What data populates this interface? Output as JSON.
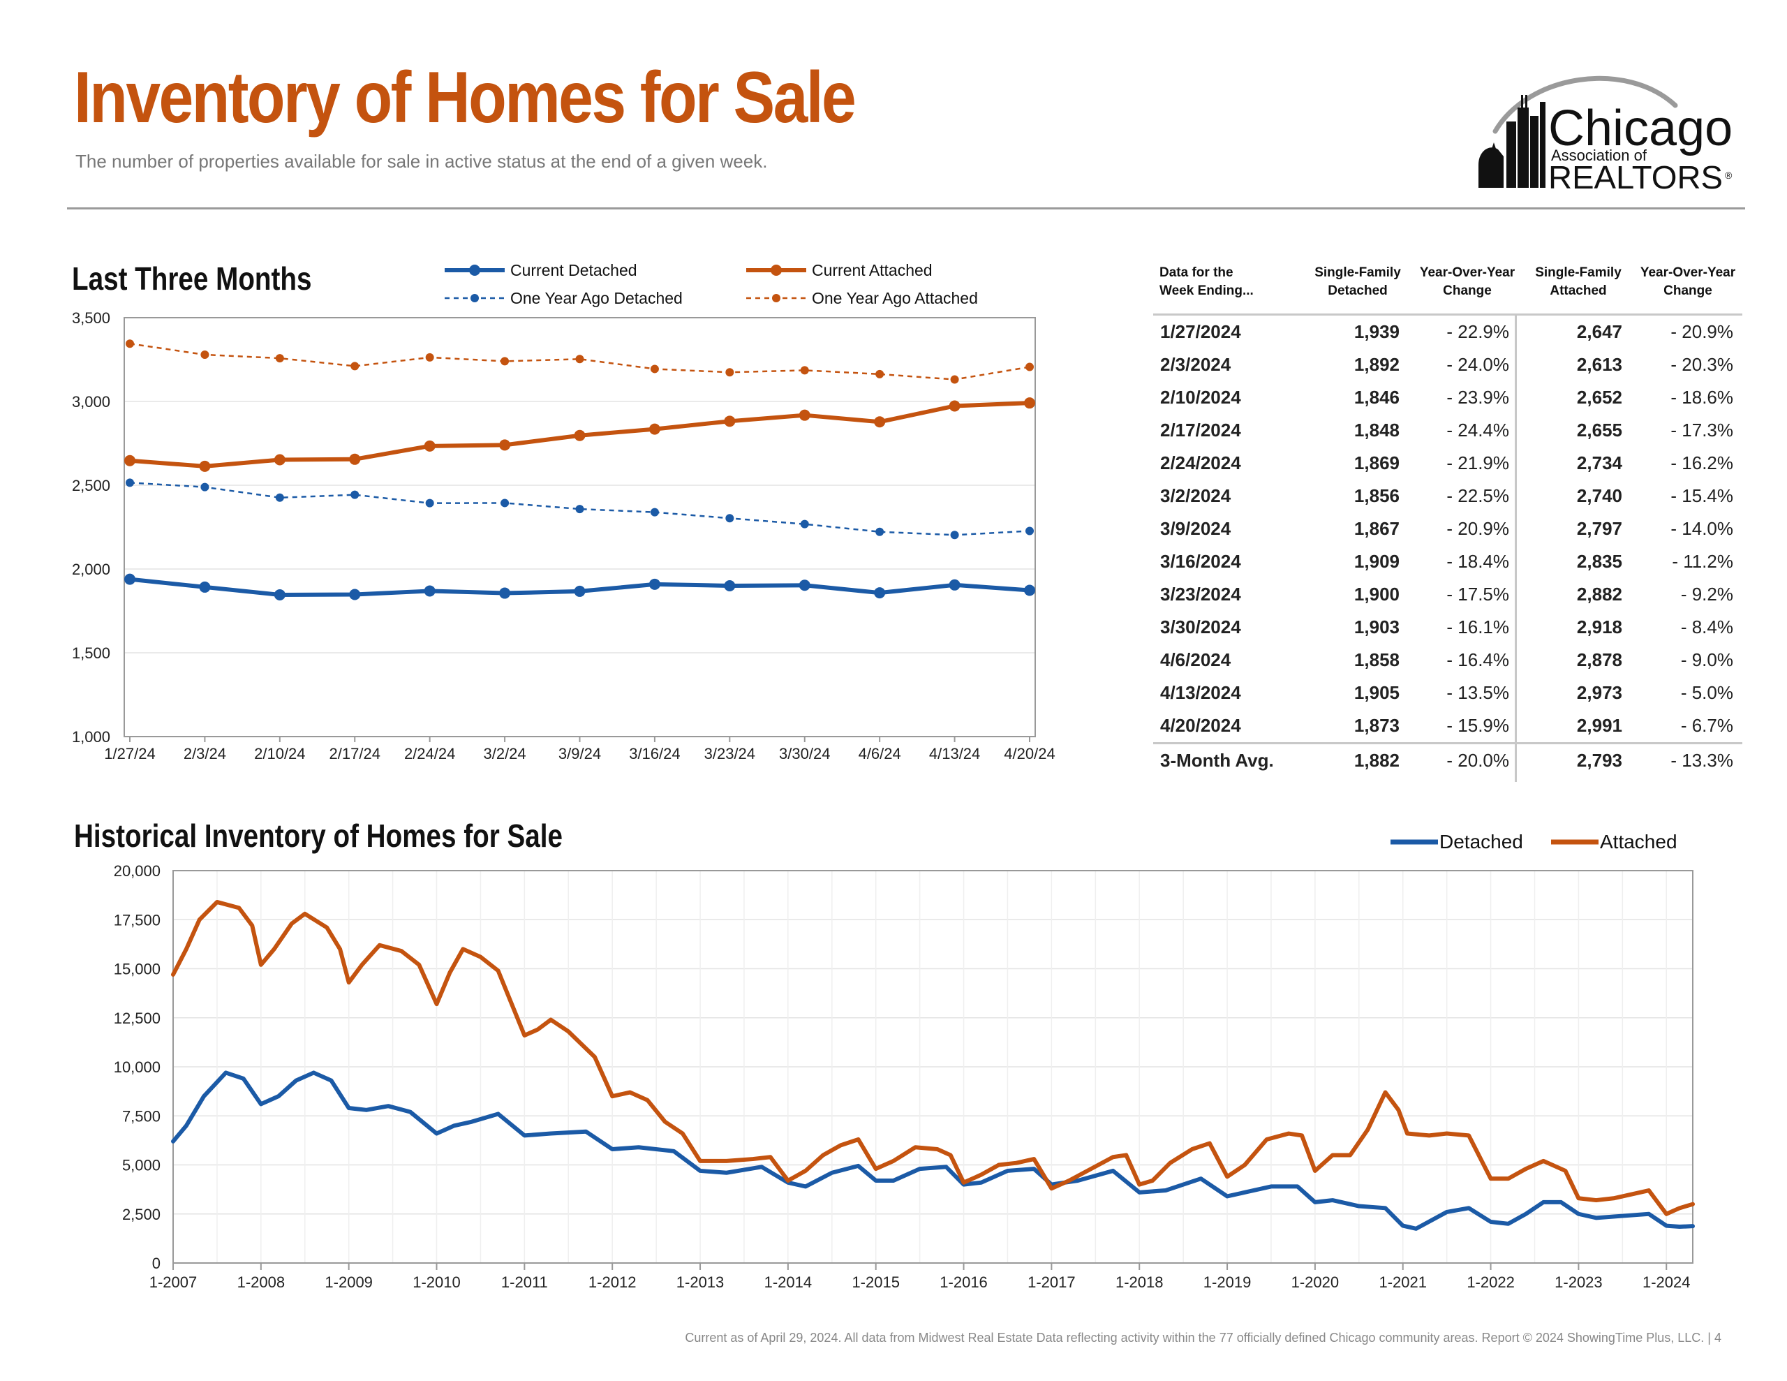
{
  "header": {
    "title": "Inventory of Homes for Sale",
    "subtitle": "The number of properties available for sale in active status at the end of a given week."
  },
  "logo": {
    "line1": "Chicago",
    "line2": "Association of",
    "line3": "REALTORS",
    "mark": "®"
  },
  "colors": {
    "title": "#c4530f",
    "detached": "#1b5aa6",
    "attached": "#c4530f",
    "grid": "#e3e3e3"
  },
  "section1_title": "Last Three Months",
  "section2_title": "Historical Inventory of Homes for Sale",
  "chart_data": [
    {
      "type": "line",
      "categories": [
        "1/27/24",
        "2/3/24",
        "2/10/24",
        "2/17/24",
        "2/24/24",
        "3/2/24",
        "3/9/24",
        "3/16/24",
        "3/23/24",
        "3/30/24",
        "4/6/24",
        "4/13/24",
        "4/20/24"
      ],
      "yticks": [
        "1,000",
        "1,500",
        "2,000",
        "2,500",
        "3,000",
        "3,500"
      ],
      "ylim": [
        1000,
        3500
      ],
      "grid": true,
      "legend_position": "top",
      "series": [
        {
          "name": "Current Detached",
          "style": "solid",
          "color": "#1b5aa6",
          "values": [
            1939,
            1892,
            1846,
            1848,
            1869,
            1856,
            1867,
            1909,
            1900,
            1903,
            1858,
            1905,
            1873
          ]
        },
        {
          "name": "Current Attached",
          "style": "solid",
          "color": "#c4530f",
          "values": [
            2647,
            2613,
            2652,
            2655,
            2734,
            2740,
            2797,
            2835,
            2882,
            2918,
            2878,
            2973,
            2991
          ]
        },
        {
          "name": "One Year Ago Detached",
          "style": "dashed",
          "color": "#1b5aa6",
          "values": [
            2515,
            2489,
            2426,
            2443,
            2393,
            2394,
            2358,
            2339,
            2303,
            2268,
            2222,
            2203,
            2227
          ]
        },
        {
          "name": "One Year Ago Attached",
          "style": "dashed",
          "color": "#c4530f",
          "values": [
            3345,
            3279,
            3258,
            3211,
            3263,
            3240,
            3253,
            3194,
            3174,
            3186,
            3163,
            3131,
            3206
          ]
        }
      ]
    },
    {
      "type": "line",
      "xticks": [
        "1-2007",
        "1-2008",
        "1-2009",
        "1-2010",
        "1-2011",
        "1-2012",
        "1-2013",
        "1-2014",
        "1-2015",
        "1-2016",
        "1-2017",
        "1-2018",
        "1-2019",
        "1-2020",
        "1-2021",
        "1-2022",
        "1-2023",
        "1-2024"
      ],
      "xlim": [
        2007.0,
        2024.3
      ],
      "yticks": [
        "0",
        "2,500",
        "5,000",
        "7,500",
        "10,000",
        "12,500",
        "15,000",
        "17,500",
        "20,000"
      ],
      "ylim": [
        0,
        20000
      ],
      "grid": true,
      "legend_position": "top-right",
      "series": [
        {
          "name": "Detached",
          "color": "#1b5aa6",
          "points": [
            [
              2007.0,
              6200
            ],
            [
              2007.15,
              7000
            ],
            [
              2007.35,
              8500
            ],
            [
              2007.6,
              9700
            ],
            [
              2007.8,
              9400
            ],
            [
              2008.0,
              8100
            ],
            [
              2008.2,
              8500
            ],
            [
              2008.4,
              9300
            ],
            [
              2008.6,
              9700
            ],
            [
              2008.8,
              9300
            ],
            [
              2009.0,
              7900
            ],
            [
              2009.2,
              7800
            ],
            [
              2009.45,
              8000
            ],
            [
              2009.7,
              7700
            ],
            [
              2010.0,
              6600
            ],
            [
              2010.2,
              7000
            ],
            [
              2010.4,
              7200
            ],
            [
              2010.7,
              7600
            ],
            [
              2011.0,
              6500
            ],
            [
              2011.3,
              6600
            ],
            [
              2011.7,
              6700
            ],
            [
              2012.0,
              5800
            ],
            [
              2012.3,
              5900
            ],
            [
              2012.7,
              5700
            ],
            [
              2013.0,
              4700
            ],
            [
              2013.3,
              4600
            ],
            [
              2013.7,
              4900
            ],
            [
              2014.0,
              4100
            ],
            [
              2014.2,
              3900
            ],
            [
              2014.5,
              4600
            ],
            [
              2014.8,
              4950
            ],
            [
              2015.0,
              4200
            ],
            [
              2015.2,
              4200
            ],
            [
              2015.5,
              4800
            ],
            [
              2015.8,
              4900
            ],
            [
              2016.0,
              4000
            ],
            [
              2016.2,
              4100
            ],
            [
              2016.5,
              4700
            ],
            [
              2016.8,
              4800
            ],
            [
              2017.0,
              4000
            ],
            [
              2017.3,
              4200
            ],
            [
              2017.7,
              4700
            ],
            [
              2018.0,
              3600
            ],
            [
              2018.3,
              3700
            ],
            [
              2018.7,
              4300
            ],
            [
              2019.0,
              3400
            ],
            [
              2019.2,
              3600
            ],
            [
              2019.5,
              3900
            ],
            [
              2019.8,
              3900
            ],
            [
              2020.0,
              3100
            ],
            [
              2020.2,
              3200
            ],
            [
              2020.5,
              2900
            ],
            [
              2020.8,
              2800
            ],
            [
              2021.0,
              1900
            ],
            [
              2021.15,
              1750
            ],
            [
              2021.5,
              2600
            ],
            [
              2021.75,
              2800
            ],
            [
              2022.0,
              2100
            ],
            [
              2022.2,
              2000
            ],
            [
              2022.4,
              2500
            ],
            [
              2022.6,
              3100
            ],
            [
              2022.8,
              3100
            ],
            [
              2023.0,
              2500
            ],
            [
              2023.2,
              2300
            ],
            [
              2023.5,
              2400
            ],
            [
              2023.8,
              2500
            ],
            [
              2024.0,
              1900
            ],
            [
              2024.15,
              1850
            ],
            [
              2024.3,
              1880
            ]
          ]
        },
        {
          "name": "Attached",
          "color": "#c4530f",
          "points": [
            [
              2007.0,
              14700
            ],
            [
              2007.15,
              16000
            ],
            [
              2007.3,
              17500
            ],
            [
              2007.5,
              18400
            ],
            [
              2007.75,
              18100
            ],
            [
              2007.9,
              17200
            ],
            [
              2008.0,
              15200
            ],
            [
              2008.15,
              16000
            ],
            [
              2008.35,
              17300
            ],
            [
              2008.5,
              17800
            ],
            [
              2008.75,
              17100
            ],
            [
              2008.9,
              16000
            ],
            [
              2009.0,
              14300
            ],
            [
              2009.15,
              15200
            ],
            [
              2009.35,
              16200
            ],
            [
              2009.6,
              15900
            ],
            [
              2009.8,
              15200
            ],
            [
              2010.0,
              13200
            ],
            [
              2010.15,
              14800
            ],
            [
              2010.3,
              16000
            ],
            [
              2010.5,
              15600
            ],
            [
              2010.7,
              14900
            ],
            [
              2010.9,
              12700
            ],
            [
              2011.0,
              11600
            ],
            [
              2011.15,
              11900
            ],
            [
              2011.3,
              12400
            ],
            [
              2011.5,
              11800
            ],
            [
              2011.8,
              10500
            ],
            [
              2012.0,
              8500
            ],
            [
              2012.2,
              8700
            ],
            [
              2012.4,
              8300
            ],
            [
              2012.6,
              7200
            ],
            [
              2012.8,
              6600
            ],
            [
              2013.0,
              5200
            ],
            [
              2013.3,
              5200
            ],
            [
              2013.6,
              5300
            ],
            [
              2013.8,
              5400
            ],
            [
              2014.0,
              4200
            ],
            [
              2014.2,
              4700
            ],
            [
              2014.4,
              5500
            ],
            [
              2014.6,
              6000
            ],
            [
              2014.8,
              6300
            ],
            [
              2015.0,
              4800
            ],
            [
              2015.2,
              5200
            ],
            [
              2015.45,
              5900
            ],
            [
              2015.7,
              5800
            ],
            [
              2015.85,
              5500
            ],
            [
              2016.0,
              4100
            ],
            [
              2016.2,
              4500
            ],
            [
              2016.4,
              5000
            ],
            [
              2016.6,
              5100
            ],
            [
              2016.8,
              5300
            ],
            [
              2017.0,
              3800
            ],
            [
              2017.2,
              4200
            ],
            [
              2017.45,
              4800
            ],
            [
              2017.7,
              5400
            ],
            [
              2017.85,
              5500
            ],
            [
              2018.0,
              4000
            ],
            [
              2018.15,
              4200
            ],
            [
              2018.35,
              5100
            ],
            [
              2018.6,
              5800
            ],
            [
              2018.8,
              6100
            ],
            [
              2019.0,
              4400
            ],
            [
              2019.2,
              5000
            ],
            [
              2019.45,
              6300
            ],
            [
              2019.7,
              6600
            ],
            [
              2019.85,
              6500
            ],
            [
              2020.0,
              4700
            ],
            [
              2020.2,
              5500
            ],
            [
              2020.4,
              5500
            ],
            [
              2020.6,
              6800
            ],
            [
              2020.8,
              8700
            ],
            [
              2020.95,
              7800
            ],
            [
              2021.05,
              6600
            ],
            [
              2021.3,
              6500
            ],
            [
              2021.5,
              6600
            ],
            [
              2021.75,
              6500
            ],
            [
              2022.0,
              4300
            ],
            [
              2022.2,
              4300
            ],
            [
              2022.4,
              4800
            ],
            [
              2022.6,
              5200
            ],
            [
              2022.85,
              4700
            ],
            [
              2023.0,
              3300
            ],
            [
              2023.2,
              3200
            ],
            [
              2023.4,
              3300
            ],
            [
              2023.6,
              3500
            ],
            [
              2023.8,
              3700
            ],
            [
              2024.0,
              2500
            ],
            [
              2024.15,
              2800
            ],
            [
              2024.3,
              3000
            ]
          ]
        }
      ]
    }
  ],
  "table": {
    "headers": [
      [
        "Data for the",
        "Week Ending..."
      ],
      [
        "Single-Family",
        "Detached"
      ],
      [
        "Year-Over-Year",
        "Change"
      ],
      [
        "Single-Family",
        "Attached"
      ],
      [
        "Year-Over-Year",
        "Change"
      ]
    ],
    "rows": [
      [
        "1/27/2024",
        "1,939",
        "- 22.9%",
        "2,647",
        "- 20.9%"
      ],
      [
        "2/3/2024",
        "1,892",
        "- 24.0%",
        "2,613",
        "- 20.3%"
      ],
      [
        "2/10/2024",
        "1,846",
        "- 23.9%",
        "2,652",
        "- 18.6%"
      ],
      [
        "2/17/2024",
        "1,848",
        "- 24.4%",
        "2,655",
        "- 17.3%"
      ],
      [
        "2/24/2024",
        "1,869",
        "- 21.9%",
        "2,734",
        "- 16.2%"
      ],
      [
        "3/2/2024",
        "1,856",
        "- 22.5%",
        "2,740",
        "- 15.4%"
      ],
      [
        "3/9/2024",
        "1,867",
        "- 20.9%",
        "2,797",
        "- 14.0%"
      ],
      [
        "3/16/2024",
        "1,909",
        "- 18.4%",
        "2,835",
        "- 11.2%"
      ],
      [
        "3/23/2024",
        "1,900",
        "- 17.5%",
        "2,882",
        "- 9.2%"
      ],
      [
        "3/30/2024",
        "1,903",
        "- 16.1%",
        "2,918",
        "- 8.4%"
      ],
      [
        "4/6/2024",
        "1,858",
        "- 16.4%",
        "2,878",
        "- 9.0%"
      ],
      [
        "4/13/2024",
        "1,905",
        "- 13.5%",
        "2,973",
        "- 5.0%"
      ],
      [
        "4/20/2024",
        "1,873",
        "- 15.9%",
        "2,991",
        "- 6.7%"
      ]
    ],
    "avg": [
      "3-Month Avg.",
      "1,882",
      "- 20.0%",
      "2,793",
      "- 13.3%"
    ]
  },
  "footer": "Current as of April 29, 2024.  All data from Midwest Real Estate Data reflecting activity within the 77 officially defined Chicago community areas. Report © 2024 ShowingTime Plus, LLC.  |  4"
}
